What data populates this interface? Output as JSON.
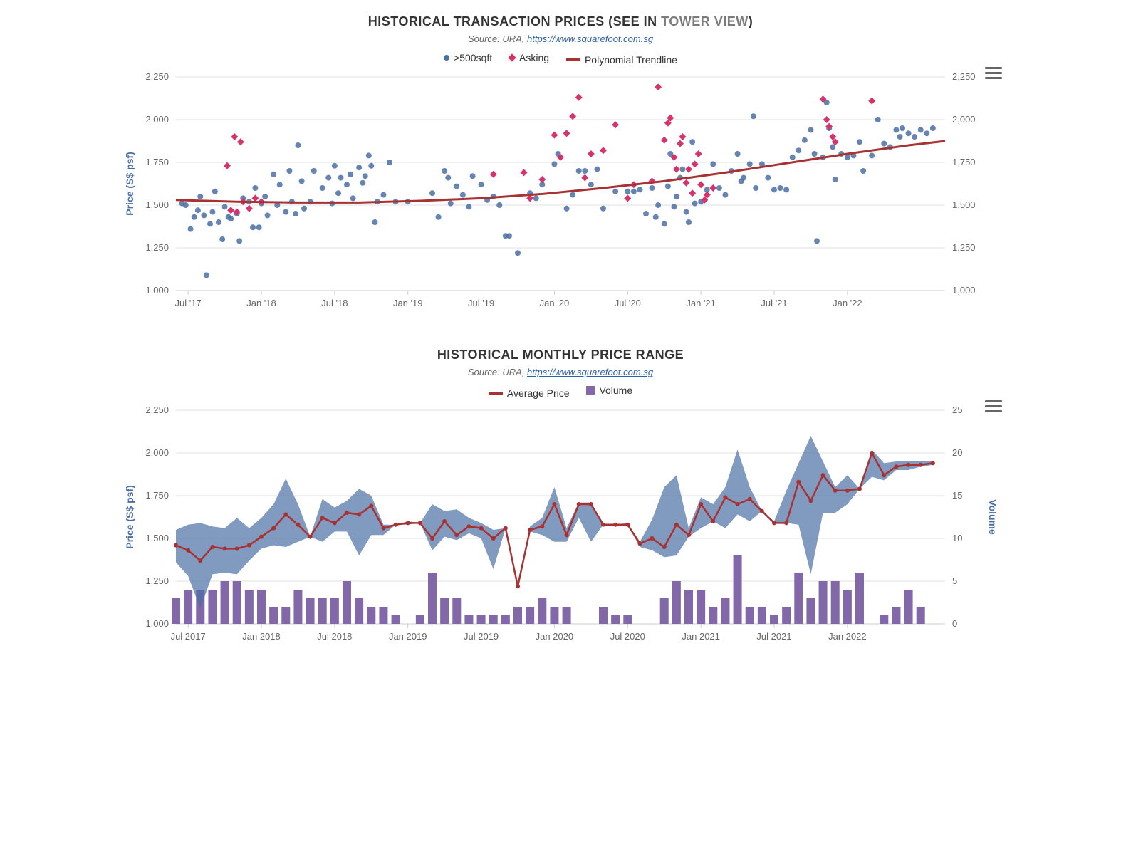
{
  "chart1": {
    "type": "scatter",
    "title_prefix": "HISTORICAL TRANSACTION PRICES (SEE IN ",
    "title_link": "TOWER VIEW",
    "title_suffix": ")",
    "subtitle_prefix": "Source: URA, ",
    "subtitle_link": "https://www.squarefoot.com.sg",
    "legend": {
      "series1": ">500sqft",
      "series2": "Asking",
      "series3": "Polynomial Trendline"
    },
    "ylabel": "Price (S$ psf)",
    "ylim": [
      1000,
      2250
    ],
    "ytick_step": 250,
    "xlim": [
      0,
      63
    ],
    "xticks_pos": [
      1,
      7,
      13,
      19,
      25,
      31,
      37,
      43,
      49,
      55,
      61
    ],
    "xticks_lbl": [
      "Jul '17",
      "Jan '18",
      "Jul '18",
      "Jan '19",
      "Jul '19",
      "Jan '20",
      "Jul '20",
      "Jan '21",
      "Jul '21",
      "Jan '22"
    ],
    "xticks_lbl_pos": [
      1,
      7,
      13,
      19,
      25,
      31,
      37,
      43,
      49,
      55
    ],
    "colors": {
      "scatter_blue": "#4a6fa5",
      "scatter_red": "#d6336c",
      "trendline": "#a83232",
      "grid": "#e0e0e0",
      "background": "#ffffff",
      "axis_text": "#666666"
    },
    "marker_radius": 4,
    "diamond_size": 5,
    "trendline_width": 3,
    "blue_points": [
      [
        0.5,
        1510
      ],
      [
        0.8,
        1500
      ],
      [
        1.2,
        1360
      ],
      [
        1.5,
        1430
      ],
      [
        1.8,
        1470
      ],
      [
        2,
        1550
      ],
      [
        2.3,
        1440
      ],
      [
        2.5,
        1090
      ],
      [
        2.8,
        1390
      ],
      [
        3,
        1460
      ],
      [
        3.2,
        1580
      ],
      [
        3.5,
        1400
      ],
      [
        3.8,
        1300
      ],
      [
        4,
        1490
      ],
      [
        4.3,
        1430
      ],
      [
        4.5,
        1420
      ],
      [
        5,
        1450
      ],
      [
        5.2,
        1290
      ],
      [
        5.5,
        1540
      ],
      [
        6,
        1520
      ],
      [
        6.3,
        1370
      ],
      [
        6.5,
        1600
      ],
      [
        6.8,
        1370
      ],
      [
        7,
        1510
      ],
      [
        7.3,
        1550
      ],
      [
        7.5,
        1440
      ],
      [
        8,
        1680
      ],
      [
        8.3,
        1500
      ],
      [
        8.5,
        1620
      ],
      [
        9,
        1460
      ],
      [
        9.3,
        1700
      ],
      [
        9.5,
        1520
      ],
      [
        9.8,
        1450
      ],
      [
        10,
        1850
      ],
      [
        10.3,
        1640
      ],
      [
        10.5,
        1480
      ],
      [
        11,
        1520
      ],
      [
        11.3,
        1700
      ],
      [
        12,
        1600
      ],
      [
        12.5,
        1660
      ],
      [
        12.8,
        1510
      ],
      [
        13,
        1730
      ],
      [
        13.3,
        1570
      ],
      [
        13.5,
        1660
      ],
      [
        14,
        1620
      ],
      [
        14.3,
        1680
      ],
      [
        14.5,
        1540
      ],
      [
        15,
        1720
      ],
      [
        15.3,
        1630
      ],
      [
        15.5,
        1670
      ],
      [
        15.8,
        1790
      ],
      [
        16,
        1730
      ],
      [
        16.3,
        1400
      ],
      [
        16.5,
        1520
      ],
      [
        17,
        1560
      ],
      [
        17.5,
        1750
      ],
      [
        18,
        1520
      ],
      [
        19,
        1520
      ],
      [
        21,
        1570
      ],
      [
        21.5,
        1430
      ],
      [
        22,
        1700
      ],
      [
        22.3,
        1660
      ],
      [
        22.5,
        1510
      ],
      [
        23,
        1610
      ],
      [
        23.5,
        1560
      ],
      [
        24,
        1490
      ],
      [
        24.3,
        1670
      ],
      [
        25,
        1620
      ],
      [
        25.5,
        1530
      ],
      [
        26,
        1550
      ],
      [
        26.5,
        1500
      ],
      [
        27,
        1320
      ],
      [
        27.3,
        1320
      ],
      [
        28,
        1220
      ],
      [
        29,
        1570
      ],
      [
        29.5,
        1540
      ],
      [
        30,
        1620
      ],
      [
        31,
        1740
      ],
      [
        31.3,
        1800
      ],
      [
        32,
        1480
      ],
      [
        32.5,
        1560
      ],
      [
        33,
        1700
      ],
      [
        33.5,
        1700
      ],
      [
        34,
        1620
      ],
      [
        34.5,
        1710
      ],
      [
        35,
        1480
      ],
      [
        36,
        1580
      ],
      [
        37,
        1580
      ],
      [
        37.5,
        1580
      ],
      [
        38,
        1590
      ],
      [
        38.5,
        1450
      ],
      [
        39,
        1600
      ],
      [
        39.3,
        1430
      ],
      [
        39.5,
        1500
      ],
      [
        40,
        1390
      ],
      [
        40.3,
        1610
      ],
      [
        40.5,
        1800
      ],
      [
        40.8,
        1490
      ],
      [
        41,
        1550
      ],
      [
        41.3,
        1660
      ],
      [
        41.5,
        1710
      ],
      [
        41.8,
        1460
      ],
      [
        42,
        1400
      ],
      [
        42.3,
        1870
      ],
      [
        42.5,
        1510
      ],
      [
        43,
        1520
      ],
      [
        43.5,
        1590
      ],
      [
        44,
        1740
      ],
      [
        44.5,
        1600
      ],
      [
        45,
        1560
      ],
      [
        45.5,
        1700
      ],
      [
        46,
        1800
      ],
      [
        46.3,
        1640
      ],
      [
        46.5,
        1660
      ],
      [
        47,
        1740
      ],
      [
        47.3,
        2020
      ],
      [
        47.5,
        1600
      ],
      [
        48,
        1740
      ],
      [
        48.5,
        1660
      ],
      [
        49,
        1590
      ],
      [
        49.5,
        1600
      ],
      [
        50,
        1590
      ],
      [
        50.5,
        1780
      ],
      [
        51,
        1820
      ],
      [
        51.5,
        1880
      ],
      [
        52,
        1940
      ],
      [
        52.3,
        1800
      ],
      [
        52.5,
        1290
      ],
      [
        53,
        1780
      ],
      [
        53.3,
        2100
      ],
      [
        53.5,
        1950
      ],
      [
        53.8,
        1840
      ],
      [
        54,
        1650
      ],
      [
        54.5,
        1800
      ],
      [
        55,
        1780
      ],
      [
        55.5,
        1790
      ],
      [
        56,
        1870
      ],
      [
        56.3,
        1700
      ],
      [
        57,
        1790
      ],
      [
        57.5,
        2000
      ],
      [
        58,
        1860
      ],
      [
        58.5,
        1840
      ],
      [
        59,
        1940
      ],
      [
        59.3,
        1900
      ],
      [
        59.5,
        1950
      ],
      [
        60,
        1920
      ],
      [
        60.5,
        1900
      ],
      [
        61,
        1940
      ],
      [
        61.5,
        1920
      ],
      [
        62,
        1950
      ]
    ],
    "red_points": [
      [
        4.2,
        1730
      ],
      [
        4.5,
        1470
      ],
      [
        4.8,
        1900
      ],
      [
        5,
        1460
      ],
      [
        5.3,
        1870
      ],
      [
        5.5,
        1520
      ],
      [
        6,
        1480
      ],
      [
        6.5,
        1540
      ],
      [
        7,
        1520
      ],
      [
        26,
        1680
      ],
      [
        28.5,
        1690
      ],
      [
        29,
        1540
      ],
      [
        30,
        1650
      ],
      [
        31,
        1910
      ],
      [
        31.5,
        1780
      ],
      [
        32,
        1920
      ],
      [
        32.5,
        2020
      ],
      [
        33,
        2130
      ],
      [
        33.5,
        1660
      ],
      [
        34,
        1800
      ],
      [
        35,
        1820
      ],
      [
        36,
        1970
      ],
      [
        37,
        1540
      ],
      [
        37.5,
        1620
      ],
      [
        39,
        1640
      ],
      [
        39.5,
        2190
      ],
      [
        40,
        1880
      ],
      [
        40.3,
        1980
      ],
      [
        40.5,
        2010
      ],
      [
        40.8,
        1780
      ],
      [
        41,
        1710
      ],
      [
        41.3,
        1860
      ],
      [
        41.5,
        1900
      ],
      [
        41.8,
        1630
      ],
      [
        42,
        1710
      ],
      [
        42.3,
        1570
      ],
      [
        42.5,
        1740
      ],
      [
        42.8,
        1800
      ],
      [
        43,
        1620
      ],
      [
        43.3,
        1530
      ],
      [
        43.5,
        1560
      ],
      [
        44,
        1600
      ],
      [
        53,
        2120
      ],
      [
        53.3,
        2000
      ],
      [
        53.5,
        1960
      ],
      [
        53.8,
        1900
      ],
      [
        54,
        1870
      ],
      [
        57,
        2110
      ]
    ],
    "trendline_pts": [
      [
        0,
        1530
      ],
      [
        5,
        1520
      ],
      [
        10,
        1515
      ],
      [
        15,
        1515
      ],
      [
        20,
        1525
      ],
      [
        25,
        1540
      ],
      [
        30,
        1565
      ],
      [
        35,
        1600
      ],
      [
        40,
        1640
      ],
      [
        45,
        1690
      ],
      [
        50,
        1745
      ],
      [
        55,
        1800
      ],
      [
        60,
        1850
      ],
      [
        63,
        1875
      ]
    ]
  },
  "chart2": {
    "type": "line_bar_combo",
    "title": "HISTORICAL MONTHLY PRICE RANGE",
    "subtitle_prefix": "Source: URA, ",
    "subtitle_link": "https://www.squarefoot.com.sg",
    "legend": {
      "series1": "Average Price",
      "series2": "Volume"
    },
    "ylabel_left": "Price (S$ psf)",
    "ylabel_right": "Volume",
    "ylim_left": [
      1000,
      2250
    ],
    "ytick_step_left": 250,
    "ylim_right": [
      0,
      25
    ],
    "ytick_step_right": 5,
    "xlim": [
      0,
      63
    ],
    "xticks_lbl": [
      "Jul 2017",
      "Jan 2018",
      "Jul 2018",
      "Jan 2019",
      "Jul 2019",
      "Jan 2020",
      "Jul 2020",
      "Jan 2021",
      "Jul 2021",
      "Jan 2022"
    ],
    "xticks_lbl_pos": [
      1,
      7,
      13,
      19,
      25,
      31,
      37,
      43,
      49,
      55
    ],
    "colors": {
      "avg_line": "#a83232",
      "range_fill": "#4a6fa5",
      "range_fill_opacity": 0.7,
      "volume_bar": "#8268a8",
      "grid": "#e0e0e0",
      "background": "#ffffff"
    },
    "line_width": 2.5,
    "marker_radius": 3,
    "bar_width": 0.7,
    "months": [
      {
        "x": 0,
        "low": 1360,
        "avg": 1460,
        "high": 1550,
        "vol": 3
      },
      {
        "x": 1,
        "low": 1280,
        "avg": 1430,
        "high": 1580,
        "vol": 4
      },
      {
        "x": 2,
        "low": 1090,
        "avg": 1370,
        "high": 1590,
        "vol": 4
      },
      {
        "x": 3,
        "low": 1290,
        "avg": 1450,
        "high": 1570,
        "vol": 4
      },
      {
        "x": 4,
        "low": 1300,
        "avg": 1440,
        "high": 1560,
        "vol": 5
      },
      {
        "x": 5,
        "low": 1290,
        "avg": 1440,
        "high": 1620,
        "vol": 5
      },
      {
        "x": 6,
        "low": 1370,
        "avg": 1460,
        "high": 1560,
        "vol": 4
      },
      {
        "x": 7,
        "low": 1440,
        "avg": 1510,
        "high": 1620,
        "vol": 4
      },
      {
        "x": 8,
        "low": 1460,
        "avg": 1560,
        "high": 1700,
        "vol": 2
      },
      {
        "x": 9,
        "low": 1450,
        "avg": 1640,
        "high": 1850,
        "vol": 2
      },
      {
        "x": 10,
        "low": 1480,
        "avg": 1580,
        "high": 1700,
        "vol": 4
      },
      {
        "x": 11,
        "low": 1510,
        "avg": 1510,
        "high": 1510,
        "vol": 3
      },
      {
        "x": 12,
        "low": 1480,
        "avg": 1620,
        "high": 1730,
        "vol": 3
      },
      {
        "x": 13,
        "low": 1540,
        "avg": 1590,
        "high": 1680,
        "vol": 3
      },
      {
        "x": 14,
        "low": 1540,
        "avg": 1650,
        "high": 1720,
        "vol": 5
      },
      {
        "x": 15,
        "low": 1400,
        "avg": 1640,
        "high": 1790,
        "vol": 3
      },
      {
        "x": 16,
        "low": 1520,
        "avg": 1690,
        "high": 1750,
        "vol": 2
      },
      {
        "x": 17,
        "low": 1520,
        "avg": 1560,
        "high": 1580,
        "vol": 2
      },
      {
        "x": 18,
        "low": 1580,
        "avg": 1580,
        "high": 1580,
        "vol": 1
      },
      {
        "x": 19,
        "low": 1580,
        "avg": 1590,
        "high": 1600,
        "vol": 0
      },
      {
        "x": 20,
        "low": 1590,
        "avg": 1590,
        "high": 1590,
        "vol": 1
      },
      {
        "x": 21,
        "low": 1430,
        "avg": 1500,
        "high": 1700,
        "vol": 6
      },
      {
        "x": 22,
        "low": 1510,
        "avg": 1600,
        "high": 1660,
        "vol": 3
      },
      {
        "x": 23,
        "low": 1490,
        "avg": 1520,
        "high": 1670,
        "vol": 3
      },
      {
        "x": 24,
        "low": 1530,
        "avg": 1570,
        "high": 1620,
        "vol": 1
      },
      {
        "x": 25,
        "low": 1500,
        "avg": 1560,
        "high": 1590,
        "vol": 1
      },
      {
        "x": 26,
        "low": 1320,
        "avg": 1500,
        "high": 1550,
        "vol": 1
      },
      {
        "x": 27,
        "low": 1560,
        "avg": 1560,
        "high": 1560,
        "vol": 1
      },
      {
        "x": 28,
        "low": 1220,
        "avg": 1220,
        "high": 1220,
        "vol": 2
      },
      {
        "x": 29,
        "low": 1540,
        "avg": 1550,
        "high": 1570,
        "vol": 2
      },
      {
        "x": 30,
        "low": 1520,
        "avg": 1570,
        "high": 1620,
        "vol": 3
      },
      {
        "x": 31,
        "low": 1480,
        "avg": 1700,
        "high": 1800,
        "vol": 2
      },
      {
        "x": 32,
        "low": 1480,
        "avg": 1520,
        "high": 1560,
        "vol": 2
      },
      {
        "x": 33,
        "low": 1620,
        "avg": 1700,
        "high": 1710,
        "vol": 0
      },
      {
        "x": 34,
        "low": 1480,
        "avg": 1700,
        "high": 1710,
        "vol": 0
      },
      {
        "x": 35,
        "low": 1580,
        "avg": 1580,
        "high": 1580,
        "vol": 2
      },
      {
        "x": 36,
        "low": 1580,
        "avg": 1580,
        "high": 1580,
        "vol": 1
      },
      {
        "x": 37,
        "low": 1580,
        "avg": 1580,
        "high": 1590,
        "vol": 1
      },
      {
        "x": 38,
        "low": 1450,
        "avg": 1470,
        "high": 1480,
        "vol": 0
      },
      {
        "x": 39,
        "low": 1430,
        "avg": 1500,
        "high": 1610,
        "vol": 0
      },
      {
        "x": 40,
        "low": 1390,
        "avg": 1450,
        "high": 1800,
        "vol": 3
      },
      {
        "x": 41,
        "low": 1400,
        "avg": 1580,
        "high": 1870,
        "vol": 5
      },
      {
        "x": 42,
        "low": 1510,
        "avg": 1520,
        "high": 1560,
        "vol": 4
      },
      {
        "x": 43,
        "low": 1560,
        "avg": 1700,
        "high": 1740,
        "vol": 4
      },
      {
        "x": 44,
        "low": 1600,
        "avg": 1600,
        "high": 1700,
        "vol": 2
      },
      {
        "x": 45,
        "low": 1560,
        "avg": 1740,
        "high": 1800,
        "vol": 3
      },
      {
        "x": 46,
        "low": 1640,
        "avg": 1700,
        "high": 2020,
        "vol": 8
      },
      {
        "x": 47,
        "low": 1600,
        "avg": 1730,
        "high": 1800,
        "vol": 2
      },
      {
        "x": 48,
        "low": 1660,
        "avg": 1660,
        "high": 1660,
        "vol": 2
      },
      {
        "x": 49,
        "low": 1590,
        "avg": 1590,
        "high": 1600,
        "vol": 1
      },
      {
        "x": 50,
        "low": 1590,
        "avg": 1590,
        "high": 1780,
        "vol": 2
      },
      {
        "x": 51,
        "low": 1580,
        "avg": 1830,
        "high": 1940,
        "vol": 6
      },
      {
        "x": 52,
        "low": 1290,
        "avg": 1720,
        "high": 2100,
        "vol": 3
      },
      {
        "x": 53,
        "low": 1650,
        "avg": 1870,
        "high": 1950,
        "vol": 5
      },
      {
        "x": 54,
        "low": 1650,
        "avg": 1780,
        "high": 1800,
        "vol": 5
      },
      {
        "x": 55,
        "low": 1700,
        "avg": 1780,
        "high": 1870,
        "vol": 4
      },
      {
        "x": 56,
        "low": 1790,
        "avg": 1790,
        "high": 1790,
        "vol": 6
      },
      {
        "x": 57,
        "low": 1860,
        "avg": 2000,
        "high": 2020,
        "vol": 0
      },
      {
        "x": 58,
        "low": 1840,
        "avg": 1870,
        "high": 1940,
        "vol": 1
      },
      {
        "x": 59,
        "low": 1900,
        "avg": 1920,
        "high": 1950,
        "vol": 2
      },
      {
        "x": 60,
        "low": 1900,
        "avg": 1930,
        "high": 1950,
        "vol": 4
      },
      {
        "x": 61,
        "low": 1920,
        "avg": 1930,
        "high": 1950,
        "vol": 2
      },
      {
        "x": 62,
        "low": 1930,
        "avg": 1940,
        "high": 1950,
        "vol": 0
      }
    ]
  }
}
